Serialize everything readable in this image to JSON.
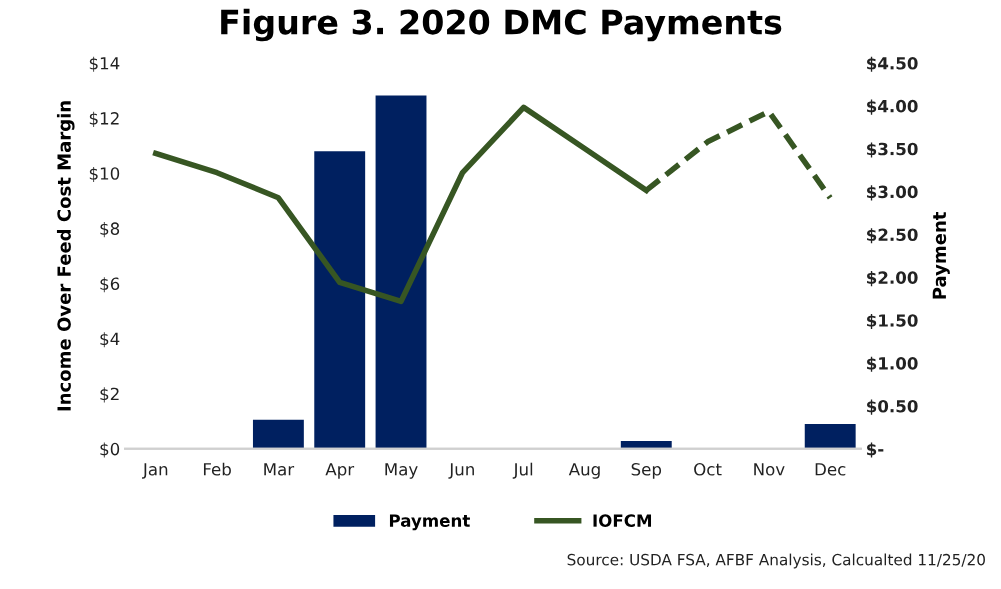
{
  "chart_data": {
    "type": "bar",
    "title": "Figure 3. 2020 DMC Payments",
    "categories": [
      "Jan",
      "Feb",
      "Mar",
      "Apr",
      "May",
      "Jun",
      "Jul",
      "Aug",
      "Sep",
      "Oct",
      "Nov",
      "Dec"
    ],
    "ylabel": "Income Over Feed Cost Margin",
    "y2label": "Payment",
    "ylim": [
      0,
      14
    ],
    "yticks": [
      {
        "value": 0,
        "label": "$0"
      },
      {
        "value": 2,
        "label": "$2"
      },
      {
        "value": 4,
        "label": "$4"
      },
      {
        "value": 6,
        "label": "$6"
      },
      {
        "value": 8,
        "label": "$8"
      },
      {
        "value": 10,
        "label": "$10"
      },
      {
        "value": 12,
        "label": "$12"
      },
      {
        "value": 14,
        "label": "$14"
      }
    ],
    "y2lim": [
      0,
      4.5
    ],
    "y2ticks": [
      {
        "value": 0,
        "label": "$-"
      },
      {
        "value": 0.5,
        "label": "$0.50"
      },
      {
        "value": 1,
        "label": "$1.00"
      },
      {
        "value": 1.5,
        "label": "$1.50"
      },
      {
        "value": 2,
        "label": "$2.00"
      },
      {
        "value": 2.5,
        "label": "$2.50"
      },
      {
        "value": 3,
        "label": "$3.00"
      },
      {
        "value": 3.5,
        "label": "$3.50"
      },
      {
        "value": 4,
        "label": "$4.00"
      },
      {
        "value": 4.5,
        "label": "$4.50"
      }
    ],
    "series": [
      {
        "name": "Payment",
        "axis": "y2",
        "color": "#002060",
        "values": [
          0,
          0,
          0.34,
          3.47,
          4.12,
          0,
          0,
          0,
          0.09,
          0,
          0,
          0.29
        ]
      },
      {
        "name": "IOFCM",
        "type": "line",
        "axis": "y",
        "color": "#375623",
        "line_style": "solid",
        "values": [
          10.72,
          10.02,
          9.11,
          6.04,
          5.35,
          10.01,
          12.39,
          10.89,
          9.38,
          null,
          null,
          null
        ]
      },
      {
        "type": "line",
        "axis": "y",
        "color": "#375623",
        "line_style": "dashed",
        "values": [
          null,
          null,
          null,
          null,
          null,
          null,
          null,
          null,
          9.38,
          11.14,
          12.24,
          9.11
        ]
      }
    ],
    "grid": false,
    "legend": "bottom",
    "marker": "none",
    "annotations": [
      "Source: USDA FSA, AFBF Analysis, Calcualted 11/25/20"
    ]
  }
}
